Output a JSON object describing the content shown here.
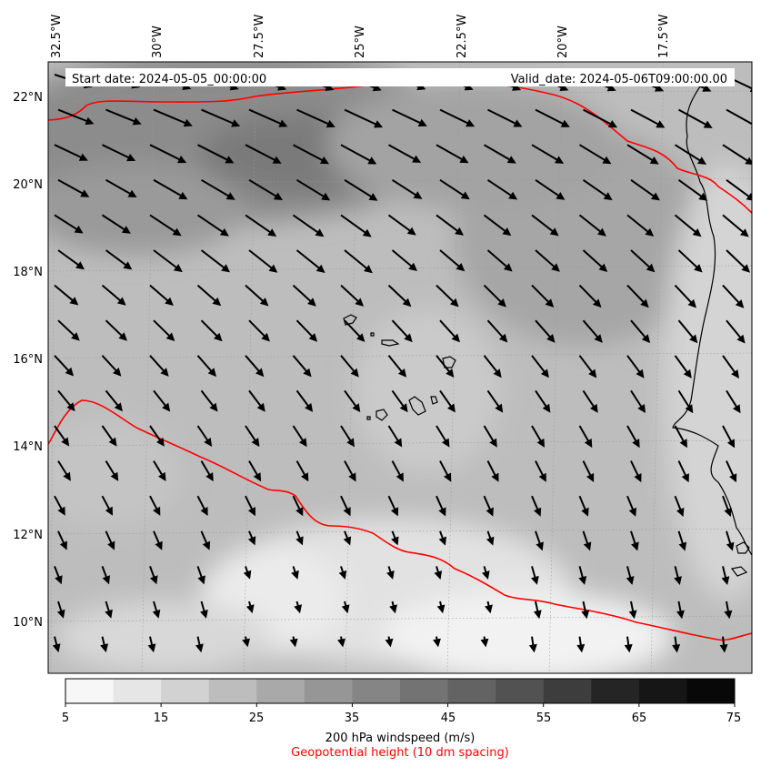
{
  "map": {
    "start_date": "Start date: 2024-05-05_00:00:00",
    "valid_date": "Valid_date: 2024-05-06T09:00:00.00",
    "lon_labels": [
      "32.5°W",
      "30°W",
      "27.5°W",
      "25°W",
      "22.5°W",
      "20°W",
      "17.5°W"
    ],
    "lat_labels": [
      "22°N",
      "20°N",
      "18°N",
      "16°N",
      "14°N",
      "12°N",
      "10°N"
    ],
    "geopotential_color": "#ff0000"
  },
  "colorbar": {
    "ticks": [
      "5",
      "15",
      "25",
      "35",
      "45",
      "55",
      "65",
      "75"
    ],
    "label": "200 hPa windspeed (m/s)",
    "sublabel": "Geopotential height (10 dm spacing)",
    "colors": [
      "#f7f7f7",
      "#e6e6e6",
      "#d2d2d2",
      "#bdbdbd",
      "#a9a9a9",
      "#969696",
      "#858585",
      "#737373",
      "#636363",
      "#525252",
      "#3d3d3d",
      "#252525",
      "#161616",
      "#080808"
    ]
  }
}
